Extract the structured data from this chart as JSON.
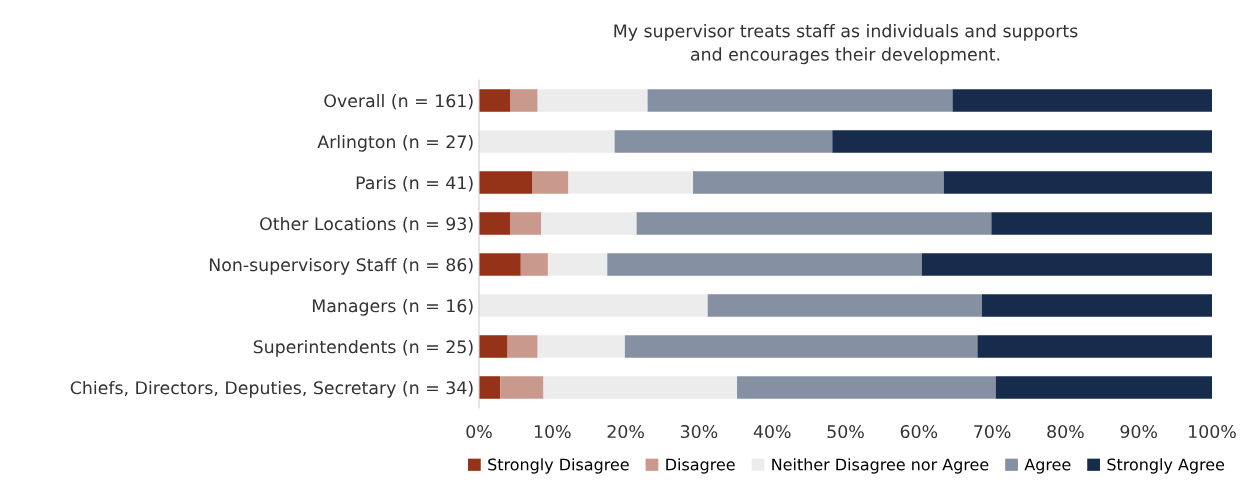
{
  "chart_data": {
    "type": "bar",
    "orientation": "horizontal",
    "stacked": true,
    "title": "My supervisor treats staff as individuals and supports\nand encourages their development.",
    "categories": [
      "Overall (n = 161)",
      "Arlington (n = 27)",
      "Paris (n = 41)",
      "Other Locations (n = 93)",
      "Non-supervisory Staff (n = 86)",
      "Managers (n = 16)",
      "Superintendents (n = 25)",
      "Chiefs, Directors, Deputies, Secretary (n = 34)"
    ],
    "series": [
      {
        "name": "Strongly Disagree",
        "color": "#943317",
        "values": [
          4.3,
          0,
          7.3,
          4.3,
          5.7,
          0,
          3.9,
          2.9
        ]
      },
      {
        "name": "Disagree",
        "color": "#c9998d",
        "values": [
          3.7,
          0,
          4.9,
          4.2,
          3.7,
          0,
          4.1,
          5.9
        ]
      },
      {
        "name": "Neither Disagree nor Agree",
        "color": "#ececec",
        "values": [
          15.0,
          18.5,
          17.0,
          13.0,
          8.1,
          31.2,
          11.9,
          26.4
        ]
      },
      {
        "name": "Agree",
        "color": "#8591a3",
        "values": [
          41.6,
          29.7,
          34.2,
          48.4,
          42.9,
          37.4,
          48.1,
          35.3
        ]
      },
      {
        "name": "Strongly Agree",
        "color": "#172b4d",
        "values": [
          35.4,
          51.8,
          36.6,
          30.1,
          39.6,
          31.4,
          32.0,
          29.5
        ]
      }
    ],
    "xlim": [
      0,
      100
    ],
    "xticks": [
      {
        "value": 0,
        "label": "0%"
      },
      {
        "value": 10,
        "label": "10%"
      },
      {
        "value": 20,
        "label": "20%"
      },
      {
        "value": 30,
        "label": "30%"
      },
      {
        "value": 40,
        "label": "40%"
      },
      {
        "value": 50,
        "label": "50%"
      },
      {
        "value": 60,
        "label": "60%"
      },
      {
        "value": 70,
        "label": "70%"
      },
      {
        "value": 80,
        "label": "80%"
      },
      {
        "value": 90,
        "label": "90%"
      },
      {
        "value": 100,
        "label": "100%"
      }
    ],
    "grid": false,
    "legend": "bottom"
  }
}
